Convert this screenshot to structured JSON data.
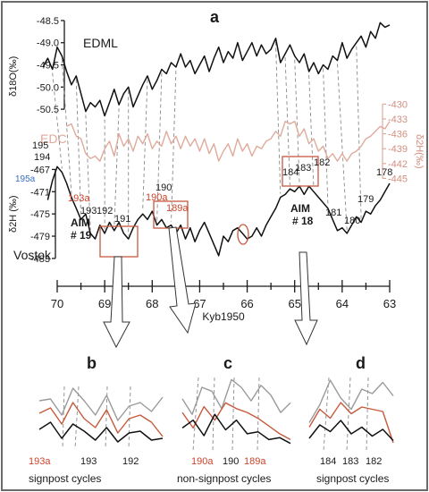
{
  "figure": {
    "panel_a": "a",
    "panel_b": "b",
    "panel_c": "c",
    "panel_d": "d",
    "series_edml": "EDML",
    "series_edc": "EDC",
    "series_vostok": "Vostok",
    "aim19_line1": "AIM",
    "aim19_line2": "# 19",
    "aim18_line1": "AIM",
    "aim18_line2": "# 18",
    "caption_b": "signpost cycles",
    "caption_c": "non-signpost cycles",
    "caption_d": "signpost cycles"
  },
  "chart_data": [
    {
      "type": "line",
      "name": "main",
      "xlabel": "Kyb1950",
      "xlim": [
        70.4,
        62.8
      ],
      "xticks": [
        "70",
        "69",
        "68",
        "67",
        "66",
        "65",
        "64",
        "63"
      ],
      "edml": {
        "ylabel": "δ18O(‰)",
        "ylim": [
          -50.7,
          -48.4
        ],
        "ticks": [
          "-48.5",
          "-49.0",
          "-49.5",
          "-50.0",
          "-50.5"
        ],
        "x": [
          70.3,
          70.2,
          70.1,
          70.0,
          69.9,
          69.8,
          69.7,
          69.6,
          69.5,
          69.4,
          69.3,
          69.2,
          69.1,
          69.0,
          68.9,
          68.8,
          68.7,
          68.6,
          68.5,
          68.4,
          68.3,
          68.2,
          68.1,
          68.0,
          67.9,
          67.8,
          67.7,
          67.6,
          67.5,
          67.4,
          67.3,
          67.2,
          67.1,
          67.0,
          66.9,
          66.8,
          66.7,
          66.6,
          66.5,
          66.4,
          66.3,
          66.2,
          66.1,
          66.0,
          65.9,
          65.8,
          65.7,
          65.6,
          65.5,
          65.4,
          65.3,
          65.2,
          65.1,
          65.0,
          64.9,
          64.8,
          64.7,
          64.6,
          64.5,
          64.4,
          64.3,
          64.2,
          64.1,
          64.0,
          63.9,
          63.8,
          63.7,
          63.6,
          63.5,
          63.4,
          63.3,
          63.2,
          63.1,
          63.0
        ],
        "values": [
          -49.55,
          -49.35,
          -49.6,
          -49.1,
          -49.3,
          -49.65,
          -49.95,
          -49.75,
          -50.15,
          -50.55,
          -50.35,
          -50.45,
          -50.3,
          -50.65,
          -50.35,
          -50.05,
          -50.4,
          -50.15,
          -50.0,
          -50.45,
          -50.2,
          -49.95,
          -49.75,
          -50.05,
          -49.85,
          -49.6,
          -49.7,
          -49.45,
          -49.55,
          -49.25,
          -49.55,
          -49.4,
          -49.7,
          -49.5,
          -49.3,
          -49.65,
          -49.35,
          -49.1,
          -49.45,
          -49.2,
          -49.35,
          -49.0,
          -49.4,
          -49.2,
          -49.0,
          -49.3,
          -49.05,
          -49.25,
          -49.15,
          -48.9,
          -49.45,
          -49.25,
          -49.05,
          -49.3,
          -49.45,
          -49.25,
          -49.65,
          -49.45,
          -49.7,
          -49.5,
          -49.6,
          -49.3,
          -49.4,
          -49.0,
          -49.35,
          -49.15,
          -49.0,
          -48.85,
          -49.1,
          -48.75,
          -48.9,
          -48.55,
          -48.65,
          -48.6
        ]
      },
      "edc": {
        "ylabel": "δ2H(‰)",
        "ylim": [
          -446,
          -428.5
        ],
        "ticks": [
          "-430",
          "-433",
          "-436",
          "-439",
          "-442",
          "-445"
        ],
        "x": [
          69.8,
          69.7,
          69.6,
          69.5,
          69.4,
          69.3,
          69.2,
          69.1,
          69.0,
          68.9,
          68.8,
          68.7,
          68.6,
          68.5,
          68.4,
          68.3,
          68.2,
          68.1,
          68.0,
          67.9,
          67.8,
          67.7,
          67.6,
          67.5,
          67.4,
          67.3,
          67.2,
          67.1,
          67.0,
          66.9,
          66.8,
          66.7,
          66.6,
          66.5,
          66.4,
          66.3,
          66.2,
          66.1,
          66.0,
          65.9,
          65.8,
          65.7,
          65.6,
          65.5,
          65.4,
          65.3,
          65.2,
          65.1,
          65.0,
          64.9,
          64.8,
          64.7,
          64.6,
          64.5,
          64.4,
          64.3,
          64.2,
          64.1,
          64.0,
          63.9,
          63.8,
          63.7,
          63.6,
          63.5,
          63.4,
          63.3,
          63.2,
          63.1,
          63.0
        ],
        "values": [
          -434.5,
          -434.0,
          -436.5,
          -437.0,
          -440.0,
          -441.0,
          -440.5,
          -441.5,
          -439.0,
          -437.5,
          -440.5,
          -436.0,
          -438.5,
          -437.0,
          -439.5,
          -436.5,
          -438.0,
          -436.0,
          -439.0,
          -437.5,
          -438.5,
          -435.5,
          -438.0,
          -436.5,
          -439.0,
          -436.5,
          -438.5,
          -437.0,
          -439.5,
          -437.0,
          -440.0,
          -438.0,
          -441.5,
          -439.5,
          -438.0,
          -440.5,
          -437.0,
          -439.5,
          -438.0,
          -440.5,
          -438.5,
          -439.0,
          -437.5,
          -437.0,
          -435.5,
          -436.5,
          -433.5,
          -434.0,
          -433.5,
          -436.5,
          -435.0,
          -438.0,
          -437.0,
          -439.5,
          -438.5,
          -441.0,
          -440.0,
          -441.5,
          -440.0,
          -441.5,
          -440.0,
          -439.5,
          -438.5,
          -437.0,
          -436.5,
          -435.5,
          -434.5,
          -435.0,
          -433.5
        ]
      },
      "vostok": {
        "ylabel": "δ2H (‰)",
        "ylim": [
          -483.5,
          -465
        ],
        "ticks": [
          "-467",
          "-471",
          "-475",
          "-479",
          "-483"
        ],
        "x": [
          70.2,
          70.1,
          70.0,
          69.9,
          69.8,
          69.7,
          69.6,
          69.5,
          69.4,
          69.3,
          69.2,
          69.1,
          69.0,
          68.9,
          68.8,
          68.7,
          68.6,
          68.5,
          68.4,
          68.3,
          68.2,
          68.1,
          68.0,
          67.9,
          67.8,
          67.7,
          67.6,
          67.5,
          67.4,
          67.3,
          67.2,
          67.1,
          67.0,
          66.9,
          66.8,
          66.7,
          66.6,
          66.5,
          66.4,
          66.3,
          66.2,
          66.1,
          66.0,
          65.9,
          65.8,
          65.7,
          65.6,
          65.5,
          65.4,
          65.3,
          65.2,
          65.1,
          65.0,
          64.9,
          64.8,
          64.7,
          64.6,
          64.5,
          64.4,
          64.3,
          64.2,
          64.1,
          64.0,
          63.9,
          63.8,
          63.7,
          63.6,
          63.5,
          63.4,
          63.3,
          63.2,
          63.1,
          63.0
        ],
        "values": [
          -472.5,
          -469.0,
          -466.5,
          -467.5,
          -469.5,
          -472.0,
          -474.0,
          -476.0,
          -475.0,
          -478.5,
          -479.5,
          -477.0,
          -478.5,
          -476.5,
          -478.0,
          -476.5,
          -478.5,
          -479.5,
          -477.5,
          -476.0,
          -475.0,
          -476.0,
          -474.5,
          -477.0,
          -476.0,
          -477.5,
          -477.0,
          -478.5,
          -477.0,
          -479.5,
          -477.5,
          -480.0,
          -478.0,
          -476.5,
          -478.5,
          -480.5,
          -482.5,
          -479.0,
          -480.0,
          -478.0,
          -477.5,
          -478.5,
          -479.5,
          -479.0,
          -477.5,
          -479.0,
          -477.0,
          -475.5,
          -474.0,
          -472.0,
          -471.5,
          -470.5,
          -471.0,
          -470.0,
          -471.5,
          -470.0,
          -471.0,
          -472.0,
          -473.0,
          -474.0,
          -476.0,
          -478.0,
          -477.5,
          -478.5,
          -477.0,
          -475.5,
          -476.5,
          -474.5,
          -475.0,
          -473.5,
          -472.5,
          -471.0,
          -469.5
        ]
      },
      "cycle_labels": [
        "195",
        "194",
        "195a",
        "193a",
        "193",
        "192",
        "191",
        "190",
        "190a",
        "189a",
        "184",
        "183",
        "182",
        "181",
        "180",
        "179",
        "178"
      ]
    },
    {
      "type": "line",
      "name": "b",
      "cycle_labels": [
        "193a",
        "193",
        "192"
      ],
      "grey": [
        2.0,
        2.1,
        1.2,
        2.7,
        2.0,
        1.2,
        2.3,
        0.9,
        1.7,
        1.9,
        1.4,
        2.2
      ],
      "red": [
        1.3,
        1.6,
        0.7,
        1.9,
        1.0,
        0.5,
        1.5,
        0.2,
        1.0,
        1.2,
        0.8,
        0.0
      ],
      "black": [
        0.4,
        0.8,
        -0.1,
        0.7,
        0.3,
        -0.2,
        0.5,
        -0.3,
        0.2,
        0.3,
        -0.2,
        -0.1
      ]
    },
    {
      "type": "line",
      "name": "c",
      "cycle_labels": [
        "190a",
        "190",
        "189a"
      ],
      "grey": [
        2.0,
        1.2,
        2.6,
        2.4,
        1.5,
        3.0,
        2.6,
        1.9,
        2.7,
        2.2,
        1.3,
        1.8
      ],
      "red": [
        1.3,
        0.5,
        1.6,
        0.9,
        1.8,
        1.5,
        1.3,
        1.0,
        0.6,
        0.2,
        -0.1
      ],
      "black": [
        0.5,
        0.9,
        0.1,
        1.2,
        0.4,
        0.9,
        0.2,
        0.3,
        -0.1,
        0.0,
        -0.3
      ]
    },
    {
      "type": "line",
      "name": "d",
      "cycle_labels": [
        "184",
        "183",
        "182"
      ],
      "grey": [
        1.2,
        2.0,
        3.1,
        2.3,
        1.8,
        2.7,
        2.5,
        3.0,
        2.4
      ],
      "red": [
        1.0,
        1.8,
        1.4,
        2.1,
        1.6,
        1.9,
        1.8,
        1.7,
        0.3
      ],
      "black": [
        0.5,
        1.1,
        0.8,
        1.3,
        0.7,
        1.0,
        0.6,
        0.9,
        0.4
      ]
    }
  ]
}
